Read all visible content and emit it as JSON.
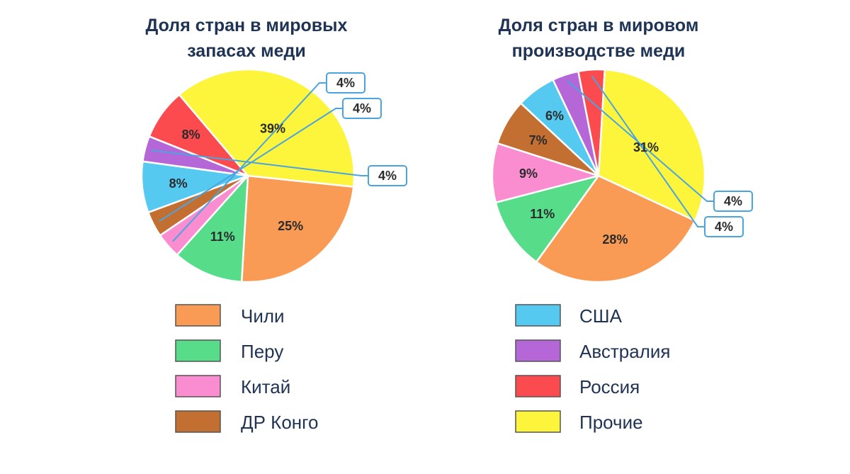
{
  "chart_data": [
    {
      "type": "pie",
      "title_lines": [
        "Доля стран в мировых",
        "запасах меди"
      ],
      "categories": [
        "Чили",
        "Перу",
        "Китай",
        "ДР Конго",
        "США",
        "Австралия",
        "Россия",
        "Прочие"
      ],
      "values": [
        25,
        11,
        4,
        4,
        8,
        4,
        8,
        39
      ],
      "labels": [
        "25%",
        "11%",
        "4%",
        "4%",
        "8%",
        "4%",
        "8%",
        "39%"
      ],
      "callout_slices": [
        2,
        3,
        5
      ]
    },
    {
      "type": "pie",
      "title_lines": [
        "Доля стран в мировом",
        "производстве меди"
      ],
      "categories": [
        "Чили",
        "Перу",
        "Китай",
        "ДР Конго",
        "США",
        "Австралия",
        "Россия",
        "Прочие"
      ],
      "values": [
        28,
        11,
        9,
        7,
        6,
        4,
        4,
        31
      ],
      "labels": [
        "28%",
        "11%",
        "9%",
        "7%",
        "6%",
        "4%",
        "4%",
        "31%"
      ],
      "callout_slices": [
        5,
        6
      ]
    }
  ],
  "colors": [
    "#f99b54",
    "#57dd8a",
    "#f98dd0",
    "#c46f32",
    "#56c9f1",
    "#b566d7",
    "#fb4b4e",
    "#fcf53c"
  ],
  "legend": {
    "left": [
      {
        "label": "Чили",
        "color_index": 0
      },
      {
        "label": "Перу",
        "color_index": 1
      },
      {
        "label": "Китай",
        "color_index": 2
      },
      {
        "label": "ДР Конго",
        "color_index": 3
      }
    ],
    "right": [
      {
        "label": "США",
        "color_index": 4
      },
      {
        "label": "Австралия",
        "color_index": 5
      },
      {
        "label": "Россия",
        "color_index": 6
      },
      {
        "label": "Прочие",
        "color_index": 7
      }
    ]
  }
}
